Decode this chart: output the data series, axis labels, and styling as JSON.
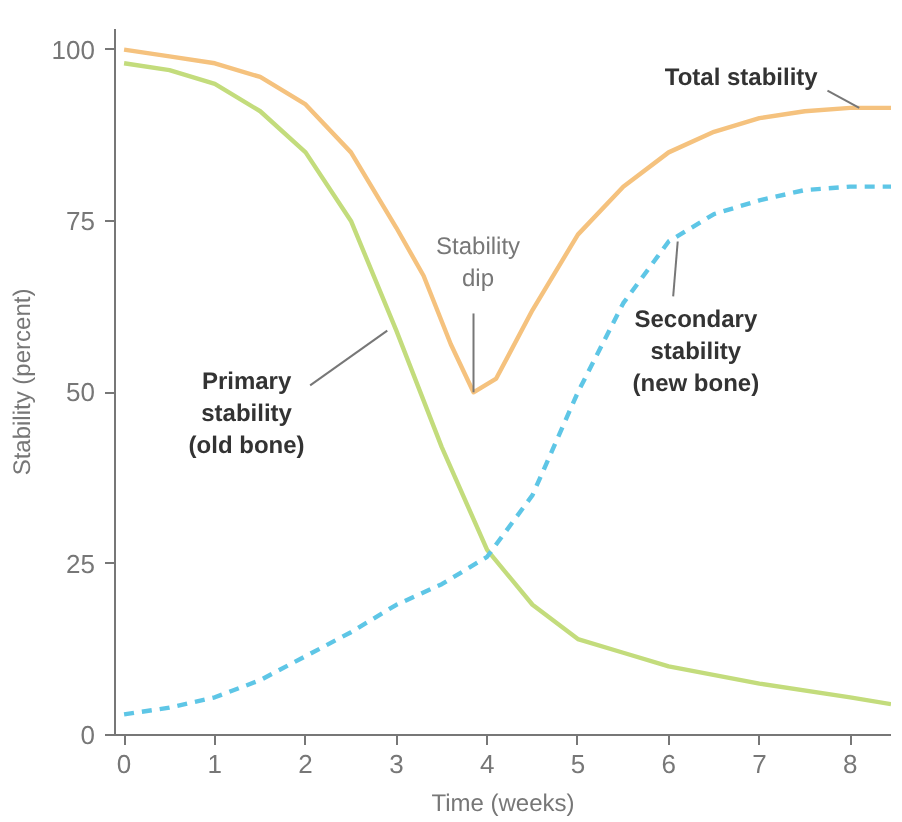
{
  "chart_data": {
    "type": "line",
    "xlabel": "Time (weeks)",
    "ylabel": "Stability (percent)",
    "xlim": [
      -0.1,
      8.45
    ],
    "ylim": [
      0,
      103
    ],
    "xticks": [
      0,
      1,
      2,
      3,
      4,
      5,
      6,
      7,
      8
    ],
    "yticks": [
      0,
      25,
      50,
      75,
      100
    ],
    "grid": false,
    "marker": "none",
    "series": [
      {
        "color": "#f5c27e",
        "line_style": "solid",
        "x": [
          0,
          0.5,
          1,
          1.5,
          2,
          2.5,
          3,
          3.3,
          3.6,
          3.85,
          4.1,
          4.5,
          5,
          5.5,
          6,
          6.5,
          7,
          7.5,
          8,
          8.45
        ],
        "values": [
          100,
          99,
          98,
          96,
          92,
          85,
          74,
          67,
          57,
          50,
          52,
          62,
          73,
          80,
          85,
          88,
          90,
          91,
          91.5,
          91.5
        ]
      },
      {
        "color": "#c3dc7c",
        "line_style": "solid",
        "x": [
          0,
          0.5,
          1,
          1.5,
          2,
          2.5,
          3,
          3.5,
          4,
          4.5,
          5,
          5.5,
          6,
          7,
          8,
          8.45
        ],
        "values": [
          98,
          97,
          95,
          91,
          85,
          75,
          59,
          42,
          27,
          19,
          14,
          12,
          10,
          7.5,
          5.5,
          4.5
        ]
      },
      {
        "color": "#5ec6e6",
        "line_style": "dashed",
        "x": [
          0,
          0.5,
          1,
          1.5,
          2,
          2.5,
          3,
          3.5,
          4,
          4.5,
          5,
          5.5,
          6,
          6.5,
          7,
          7.5,
          8,
          8.45
        ],
        "values": [
          3,
          4,
          5.5,
          8,
          11.5,
          15,
          19,
          22,
          26,
          35,
          50,
          63,
          72,
          76,
          78,
          79.5,
          80,
          80
        ]
      }
    ],
    "annotations": [
      {
        "text": "Total stability",
        "x": 8.1,
        "y": 91.5
      },
      {
        "text": "Stability\ndip",
        "x": 3.85,
        "y": 50
      },
      {
        "text": "Primary\nstability\n(old bone)",
        "x": 2.9,
        "y": 59
      },
      {
        "text": "Secondary\nstability\n(new bone)",
        "x": 6.1,
        "y": 72
      }
    ]
  }
}
